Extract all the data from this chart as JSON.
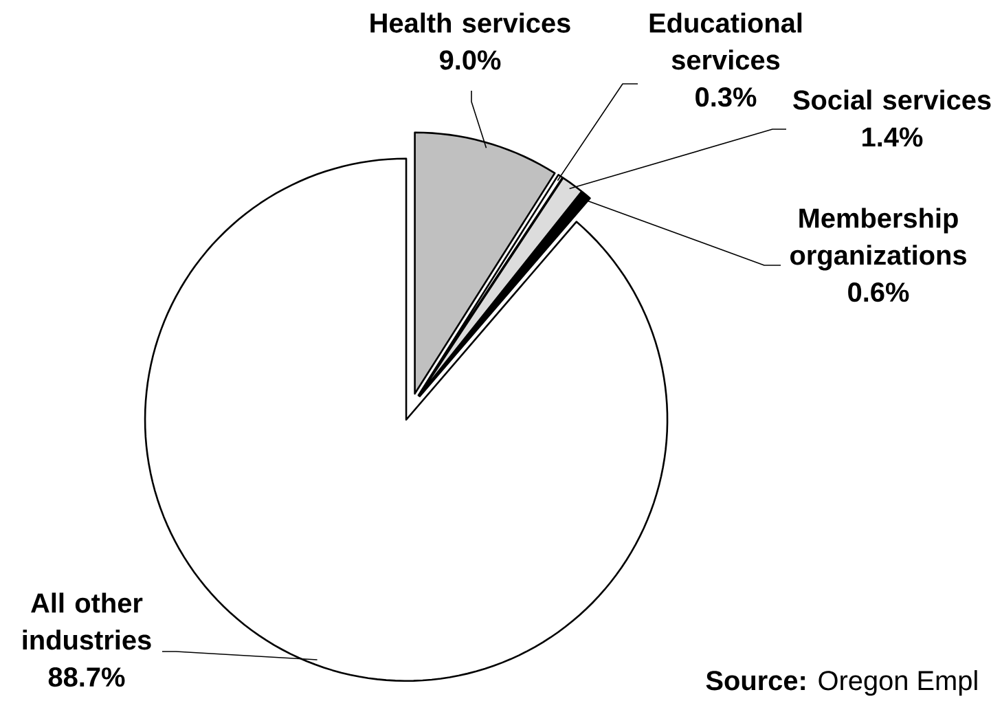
{
  "chart_data": {
    "type": "pie",
    "categories": [
      "Health services",
      "Educational services",
      "Social services",
      "Membership organizations",
      "All other industries"
    ],
    "values": [
      9.0,
      0.3,
      1.4,
      0.6,
      88.7
    ],
    "colors": [
      "#c0c0c0",
      "#ffffff",
      "#dcdcdc",
      "#000000",
      "#ffffff"
    ],
    "value_labels": [
      "9.0%",
      "0.3%",
      "1.4%",
      "0.6%",
      "88.7%"
    ],
    "annotations": [
      "**Source:** Oregon Empl"
    ]
  }
}
